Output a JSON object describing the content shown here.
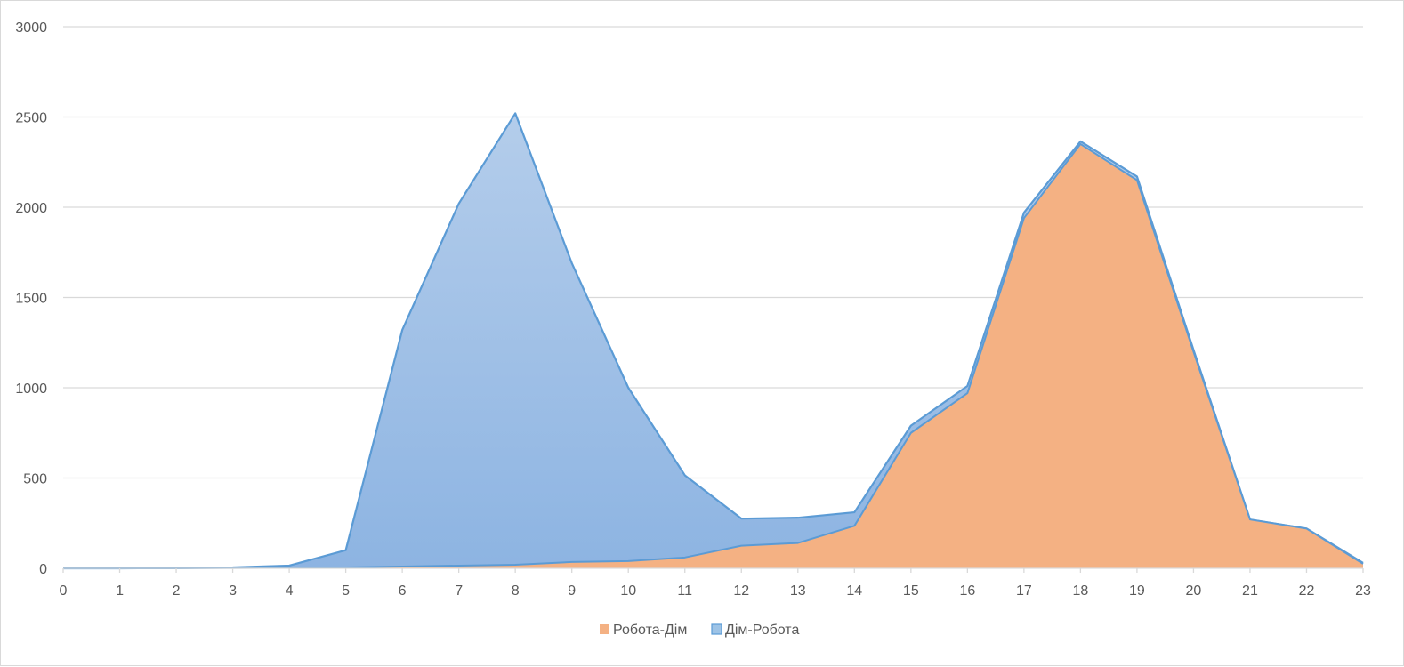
{
  "chart_data": {
    "type": "area",
    "title": "",
    "xlabel": "",
    "ylabel": "",
    "x": [
      0,
      1,
      2,
      3,
      4,
      5,
      6,
      7,
      8,
      9,
      10,
      11,
      12,
      13,
      14,
      15,
      16,
      17,
      18,
      19,
      20,
      21,
      22,
      23
    ],
    "x_tick_labels": [
      "0",
      "1",
      "2",
      "3",
      "4",
      "5",
      "6",
      "7",
      "8",
      "9",
      "10",
      "11",
      "12",
      "13",
      "14",
      "15",
      "16",
      "17",
      "18",
      "19",
      "20",
      "21",
      "22",
      "23"
    ],
    "ylim": [
      0,
      3000
    ],
    "y_ticks": [
      0,
      500,
      1000,
      1500,
      2000,
      2500,
      3000
    ],
    "y_tick_labels": [
      "0",
      "500",
      "1000",
      "1500",
      "2000",
      "2500",
      "3000"
    ],
    "grid": "horizontal",
    "legend_position": "bottom",
    "series": [
      {
        "name": "Робота-Дім",
        "color": "#f4b183",
        "stroke": "#5b9bd5",
        "values": [
          0,
          0,
          0,
          2,
          3,
          5,
          10,
          15,
          20,
          35,
          40,
          60,
          125,
          140,
          235,
          750,
          970,
          1940,
          2350,
          2150,
          1200,
          270,
          220,
          25
        ]
      },
      {
        "name": "Дім-Робота",
        "color": "#9dc3e6",
        "stroke": "#5b9bd5",
        "values": [
          0,
          0,
          2,
          5,
          15,
          100,
          1320,
          2020,
          2520,
          1690,
          1000,
          515,
          275,
          280,
          310,
          790,
          1010,
          1970,
          2365,
          2170,
          1210,
          270,
          220,
          30
        ]
      }
    ]
  }
}
